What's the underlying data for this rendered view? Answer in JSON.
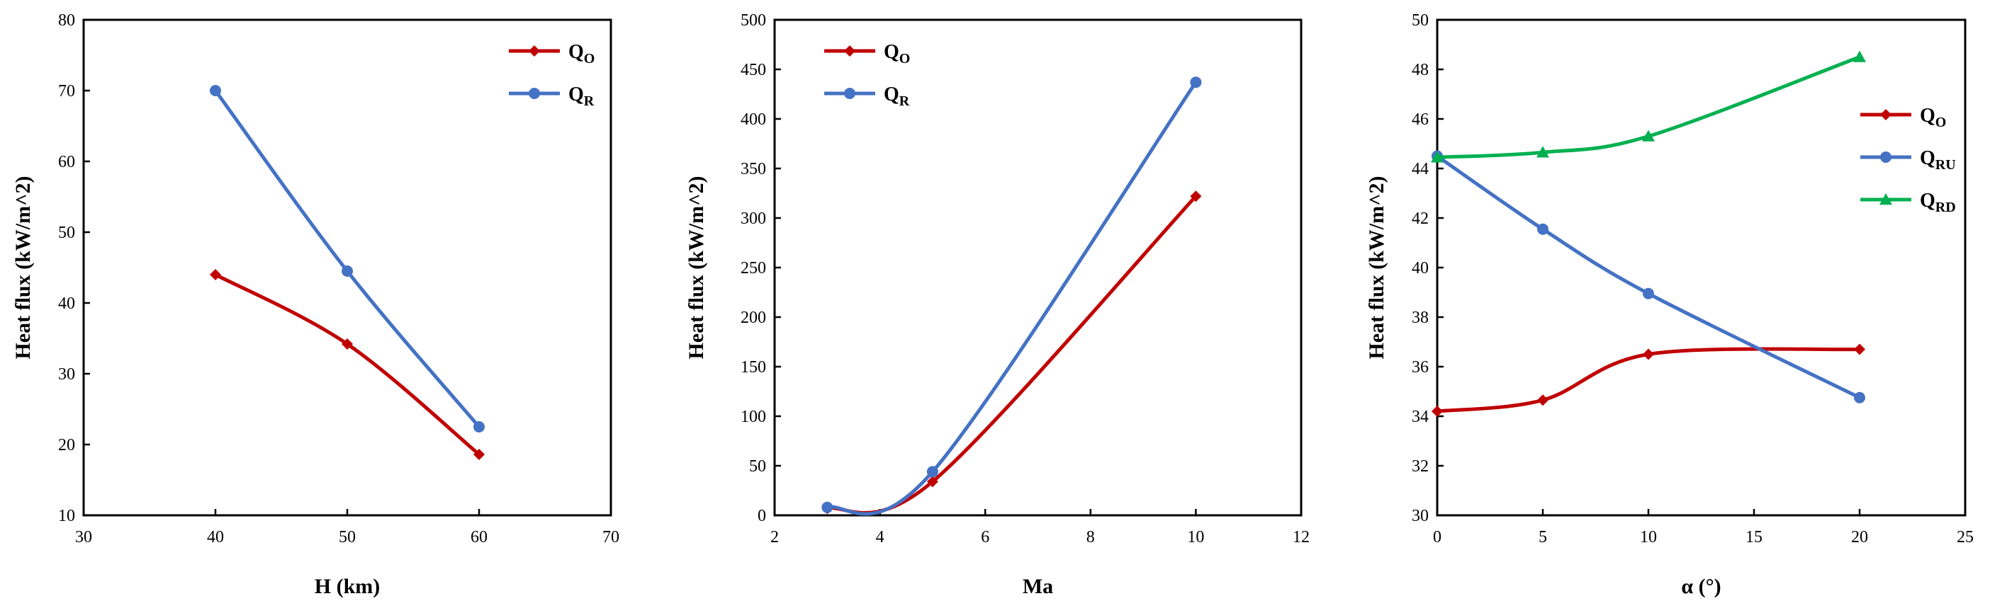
{
  "chart_data": [
    {
      "type": "line",
      "title": "",
      "xlabel": "H (km)",
      "ylabel": "Heat flux (kW/m^2)",
      "xlim": [
        30,
        70
      ],
      "ylim": [
        10,
        80
      ],
      "xticks": [
        30,
        40,
        50,
        60,
        70
      ],
      "yticks": [
        10,
        20,
        30,
        40,
        50,
        60,
        70,
        80
      ],
      "legend_position": "top-right",
      "series": [
        {
          "name": "Q",
          "sub": "O",
          "color": "#C00000",
          "marker": "diamond",
          "x": [
            40,
            50,
            60
          ],
          "y": [
            44,
            34.2,
            18.6
          ]
        },
        {
          "name": "Q",
          "sub": "R",
          "color": "#4472C4",
          "marker": "circle",
          "x": [
            40,
            50,
            60
          ],
          "y": [
            70,
            44.5,
            22.5
          ]
        }
      ]
    },
    {
      "type": "line",
      "title": "",
      "xlabel": "Ma",
      "ylabel": "Heat flux (kW/m^2)",
      "xlim": [
        2,
        12
      ],
      "ylim": [
        0,
        500
      ],
      "xticks": [
        2,
        4,
        6,
        8,
        10,
        12
      ],
      "yticks": [
        0,
        50,
        100,
        150,
        200,
        250,
        300,
        350,
        400,
        450,
        500
      ],
      "legend_position": "top-left",
      "series": [
        {
          "name": "Q",
          "sub": "O",
          "color": "#C00000",
          "marker": "diamond",
          "x": [
            3,
            5,
            10
          ],
          "y": [
            7,
            34,
            322
          ]
        },
        {
          "name": "Q",
          "sub": "R",
          "color": "#4472C4",
          "marker": "circle",
          "x": [
            3,
            5,
            10
          ],
          "y": [
            8,
            44,
            437
          ]
        }
      ]
    },
    {
      "type": "line",
      "title": "",
      "xlabel": "α (°)",
      "ylabel": "Heat flux (kW/m^2)",
      "xlim": [
        0,
        25
      ],
      "ylim": [
        30,
        50
      ],
      "xticks": [
        0,
        5,
        10,
        15,
        20,
        25
      ],
      "yticks": [
        30,
        32,
        34,
        36,
        38,
        40,
        42,
        44,
        46,
        48,
        50
      ],
      "legend_position": "right",
      "series": [
        {
          "name": "Q",
          "sub": "O",
          "color": "#C00000",
          "marker": "diamond",
          "x": [
            0,
            5,
            10,
            20
          ],
          "y": [
            34.2,
            34.65,
            36.5,
            36.7
          ]
        },
        {
          "name": "Q",
          "sub": "RU",
          "color": "#4472C4",
          "marker": "circle",
          "x": [
            0,
            5,
            10,
            20
          ],
          "y": [
            44.5,
            41.55,
            38.95,
            34.75
          ]
        },
        {
          "name": "Q",
          "sub": "RD",
          "color": "#00B050",
          "marker": "triangle",
          "x": [
            0,
            5,
            10,
            20
          ],
          "y": [
            44.45,
            44.65,
            45.3,
            48.5
          ]
        }
      ]
    }
  ]
}
